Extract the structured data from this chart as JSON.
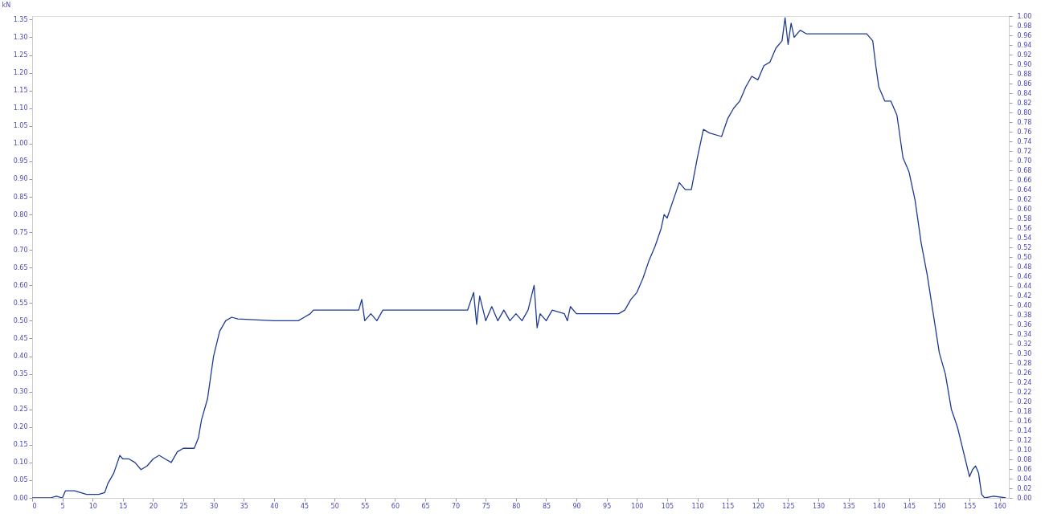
{
  "chart_data": {
    "type": "line",
    "ylabel": "kN",
    "x": [
      0,
      2,
      3,
      4,
      5,
      5.5,
      7,
      9,
      11,
      12,
      12.5,
      13.5,
      14.5,
      15,
      16,
      17,
      18,
      19,
      20,
      21,
      22,
      23,
      24,
      25,
      26,
      26.8,
      27.5,
      28,
      29,
      30,
      31,
      32,
      33,
      34,
      40,
      44,
      45,
      46,
      46.5,
      54,
      54.5,
      55,
      56,
      57,
      58,
      72,
      73,
      73.5,
      74,
      75,
      76,
      77,
      78,
      79,
      80,
      81,
      82,
      83,
      83.5,
      84,
      85,
      86,
      88,
      88.5,
      89,
      90,
      97,
      98,
      99,
      100,
      101,
      102,
      103,
      104,
      104.5,
      105,
      106,
      107,
      108,
      109,
      110,
      111,
      112,
      114,
      115,
      116,
      117,
      118,
      119,
      120,
      121,
      122,
      123,
      124,
      124.5,
      125,
      125.5,
      126,
      127,
      128,
      130,
      135,
      138,
      139,
      139.5,
      140,
      141,
      142,
      143,
      144,
      145,
      146,
      147,
      148,
      149,
      150,
      151,
      152,
      153,
      154,
      155,
      155.5,
      156,
      156.5,
      157,
      157.5,
      159,
      161
    ],
    "series": [
      {
        "color": "#1f3a93",
        "values": [
          0,
          0,
          0,
          0.005,
          0,
          0.02,
          0.02,
          0.01,
          0.01,
          0.015,
          0.04,
          0.07,
          0.12,
          0.11,
          0.11,
          0.1,
          0.08,
          0.09,
          0.11,
          0.12,
          0.11,
          0.1,
          0.13,
          0.14,
          0.14,
          0.14,
          0.17,
          0.22,
          0.28,
          0.4,
          0.47,
          0.5,
          0.51,
          0.505,
          0.5,
          0.5,
          0.51,
          0.52,
          0.53,
          0.53,
          0.56,
          0.5,
          0.52,
          0.5,
          0.53,
          0.53,
          0.58,
          0.49,
          0.57,
          0.5,
          0.54,
          0.5,
          0.53,
          0.5,
          0.52,
          0.5,
          0.53,
          0.6,
          0.48,
          0.52,
          0.5,
          0.53,
          0.52,
          0.5,
          0.54,
          0.52,
          0.52,
          0.53,
          0.56,
          0.58,
          0.62,
          0.67,
          0.71,
          0.76,
          0.8,
          0.79,
          0.84,
          0.89,
          0.87,
          0.87,
          0.96,
          1.04,
          1.03,
          1.02,
          1.07,
          1.1,
          1.12,
          1.16,
          1.19,
          1.18,
          1.22,
          1.23,
          1.27,
          1.29,
          1.355,
          1.28,
          1.34,
          1.3,
          1.32,
          1.31,
          1.31,
          1.31,
          1.31,
          1.29,
          1.22,
          1.16,
          1.12,
          1.12,
          1.08,
          0.96,
          0.92,
          0.84,
          0.72,
          0.63,
          0.52,
          0.41,
          0.35,
          0.25,
          0.2,
          0.13,
          0.06,
          0.08,
          0.09,
          0.07,
          0.01,
          0,
          0.005,
          0
        ]
      }
    ],
    "xlim": [
      0,
      161.5
    ],
    "xticks": [
      0,
      5,
      10,
      15,
      20,
      25,
      30,
      35,
      40,
      45,
      50,
      55,
      60,
      65,
      70,
      75,
      80,
      85,
      90,
      95,
      100,
      105,
      110,
      115,
      120,
      125,
      130,
      135,
      140,
      145,
      150,
      155,
      160
    ],
    "ylim": [
      0,
      1.36
    ],
    "yticks": [
      {
        "value": 0,
        "label": "0.00"
      },
      {
        "value": 0.05,
        "label": "0.05"
      },
      {
        "value": 0.1,
        "label": "0.10"
      },
      {
        "value": 0.15,
        "label": "0.15"
      },
      {
        "value": 0.2,
        "label": "0.20"
      },
      {
        "value": 0.25,
        "label": "0.25"
      },
      {
        "value": 0.3,
        "label": "0.30"
      },
      {
        "value": 0.35,
        "label": "0.35"
      },
      {
        "value": 0.4,
        "label": "0.40"
      },
      {
        "value": 0.45,
        "label": "0.45"
      },
      {
        "value": 0.5,
        "label": "0.50"
      },
      {
        "value": 0.55,
        "label": "0.55"
      },
      {
        "value": 0.6,
        "label": "0.60"
      },
      {
        "value": 0.65,
        "label": "0.65"
      },
      {
        "value": 0.7,
        "label": "0.70"
      },
      {
        "value": 0.75,
        "label": "0.75"
      },
      {
        "value": 0.8,
        "label": "0.80"
      },
      {
        "value": 0.85,
        "label": "0.85"
      },
      {
        "value": 0.9,
        "label": "0.90"
      },
      {
        "value": 0.95,
        "label": "0.95"
      },
      {
        "value": 1,
        "label": "1.00"
      },
      {
        "value": 1.05,
        "label": "1.05"
      },
      {
        "value": 1.1,
        "label": "1.10"
      },
      {
        "value": 1.15,
        "label": "1.15"
      },
      {
        "value": 1.2,
        "label": "1.20"
      },
      {
        "value": 1.25,
        "label": "1.25"
      },
      {
        "value": 1.3,
        "label": "1.30"
      },
      {
        "value": 1.35,
        "label": "1.35"
      }
    ],
    "y2lim": [
      0,
      1
    ],
    "y2ticks": [
      {
        "value": 0,
        "label": "0.00"
      },
      {
        "value": 0.02,
        "label": "0.02"
      },
      {
        "value": 0.04,
        "label": "0.04"
      },
      {
        "value": 0.06,
        "label": "0.06"
      },
      {
        "value": 0.08,
        "label": "0.08"
      },
      {
        "value": 0.1,
        "label": "0.10"
      },
      {
        "value": 0.12,
        "label": "0.12"
      },
      {
        "value": 0.14,
        "label": "0.14"
      },
      {
        "value": 0.16,
        "label": "0.16"
      },
      {
        "value": 0.18,
        "label": "0.18"
      },
      {
        "value": 0.2,
        "label": "0.20"
      },
      {
        "value": 0.22,
        "label": "0.22"
      },
      {
        "value": 0.24,
        "label": "0.24"
      },
      {
        "value": 0.26,
        "label": "0.26"
      },
      {
        "value": 0.28,
        "label": "0.28"
      },
      {
        "value": 0.3,
        "label": "0.30"
      },
      {
        "value": 0.32,
        "label": "0.32"
      },
      {
        "value": 0.34,
        "label": "0.34"
      },
      {
        "value": 0.36,
        "label": "0.36"
      },
      {
        "value": 0.38,
        "label": "0.38"
      },
      {
        "value": 0.4,
        "label": "0.40"
      },
      {
        "value": 0.42,
        "label": "0.42"
      },
      {
        "value": 0.44,
        "label": "0.44"
      },
      {
        "value": 0.46,
        "label": "0.46"
      },
      {
        "value": 0.48,
        "label": "0.48"
      },
      {
        "value": 0.5,
        "label": "0.50"
      },
      {
        "value": 0.52,
        "label": "0.52"
      },
      {
        "value": 0.54,
        "label": "0.54"
      },
      {
        "value": 0.56,
        "label": "0.56"
      },
      {
        "value": 0.58,
        "label": "0.58"
      },
      {
        "value": 0.6,
        "label": "0.60"
      },
      {
        "value": 0.62,
        "label": "0.62"
      },
      {
        "value": 0.64,
        "label": "0.64"
      },
      {
        "value": 0.66,
        "label": "0.66"
      },
      {
        "value": 0.68,
        "label": "0.68"
      },
      {
        "value": 0.7,
        "label": "0.70"
      },
      {
        "value": 0.72,
        "label": "0.72"
      },
      {
        "value": 0.74,
        "label": "0.74"
      },
      {
        "value": 0.76,
        "label": "0.76"
      },
      {
        "value": 0.78,
        "label": "0.78"
      },
      {
        "value": 0.8,
        "label": "0.80"
      },
      {
        "value": 0.82,
        "label": "0.82"
      },
      {
        "value": 0.84,
        "label": "0.84"
      },
      {
        "value": 0.86,
        "label": "0.86"
      },
      {
        "value": 0.88,
        "label": "0.88"
      },
      {
        "value": 0.9,
        "label": "0.90"
      },
      {
        "value": 0.92,
        "label": "0.92"
      },
      {
        "value": 0.94,
        "label": "0.94"
      },
      {
        "value": 0.96,
        "label": "0.96"
      },
      {
        "value": 0.98,
        "label": "0.98"
      },
      {
        "value": 1,
        "label": "1.00"
      }
    ]
  }
}
